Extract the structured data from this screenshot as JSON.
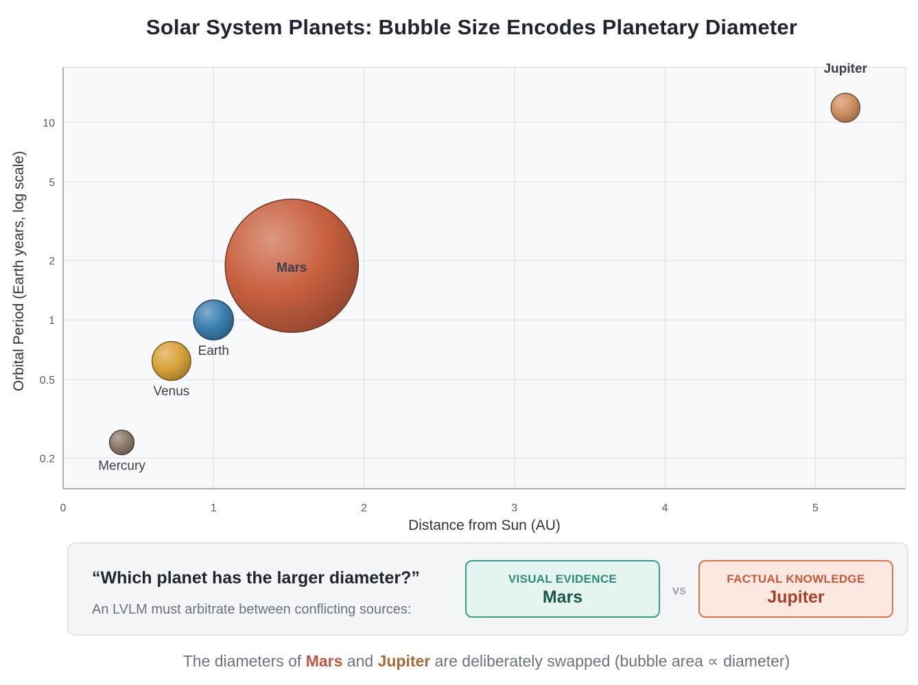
{
  "chart_data": {
    "type": "scatter",
    "title": "Solar System Planets: Bubble Size Encodes Planetary Diameter",
    "xlabel": "Distance from Sun (AU)",
    "ylabel": "Orbital Period (Earth years, log scale)",
    "xlim": [
      0,
      5.6
    ],
    "ylim": [
      0.14,
      19
    ],
    "yscale": "log",
    "grid": true,
    "x_ticks": [
      "0",
      "1",
      "2",
      "3",
      "4",
      "5"
    ],
    "y_ticks": [
      "0.2",
      "0.5",
      "1",
      "2",
      "5",
      "10"
    ],
    "points": [
      {
        "name": "Mercury",
        "x": 0.39,
        "y": 0.24,
        "size": 0.38,
        "color": "#8c7a66"
      },
      {
        "name": "Venus",
        "x": 0.72,
        "y": 0.62,
        "size": 0.95,
        "color": "#d9a23a"
      },
      {
        "name": "Earth",
        "x": 1.0,
        "y": 1.0,
        "size": 1.0,
        "color": "#3a7fb0"
      },
      {
        "name": "Mars",
        "x": 1.52,
        "y": 1.88,
        "size": 11.2,
        "color": "#c8603f"
      },
      {
        "name": "Jupiter",
        "x": 5.2,
        "y": 11.86,
        "size": 0.53,
        "color": "#cf8f5f"
      }
    ]
  },
  "panel": {
    "question": "“Which planet has the larger diameter?”",
    "subtext": "An LVLM must arbitrate between conflicting sources:",
    "visual_label": "VISUAL EVIDENCE",
    "visual_value": "Mars",
    "vs": "vs",
    "fact_label": "FACTUAL KNOWLEDGE",
    "fact_value": "Jupiter"
  },
  "caption": {
    "part1": "The diameters of ",
    "mars": "Mars",
    "part2": " and ",
    "jupiter": "Jupiter",
    "part3": " are deliberately swapped (bubble area ∝ diameter)"
  },
  "colors": {
    "mars_accent": "#c0553b",
    "jupiter_accent": "#a66a36",
    "visual_accent": "#2e9e88",
    "fact_accent": "#e0714e"
  }
}
